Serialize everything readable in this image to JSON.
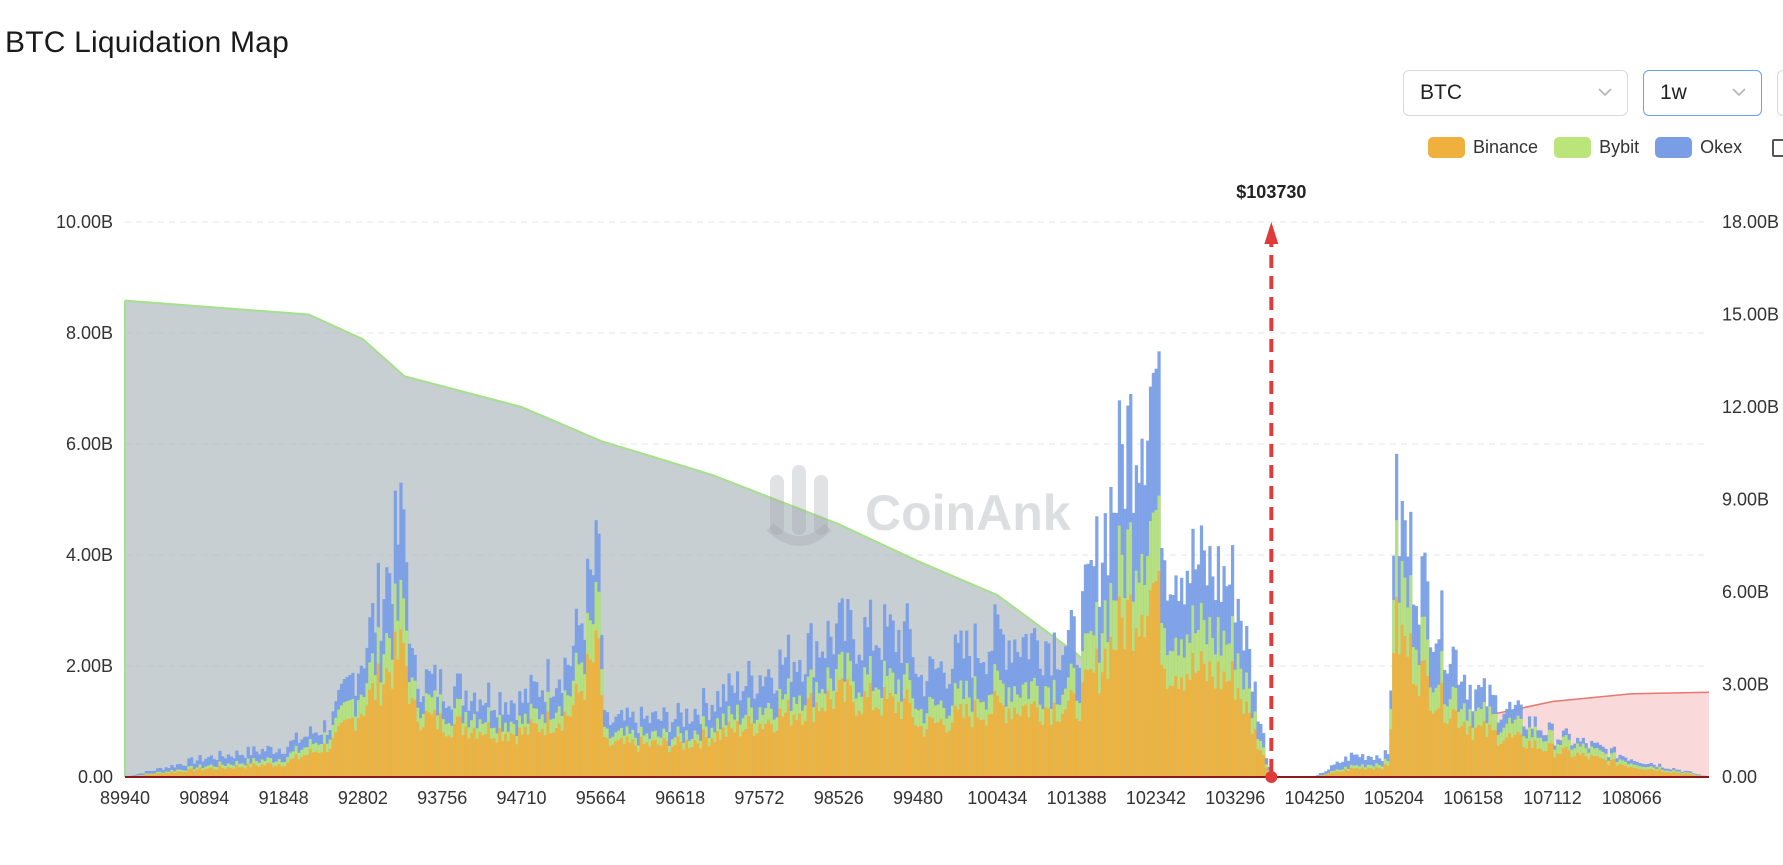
{
  "page": {
    "title": "BTC Liquidation Map"
  },
  "controls": {
    "symbol": {
      "value": "BTC",
      "icon": "chevron-down-icon"
    },
    "range": {
      "value": "1w",
      "icon": "chevron-down-icon"
    }
  },
  "colors": {
    "binance": "#efb03e",
    "bybit": "#b9e57a",
    "okex": "#7a9ee6",
    "cumulative_long": "#a7b1b8",
    "cumulative_short": "#f7c9c9",
    "current_price_line": "#e03b3b",
    "watermark": "#9aa0a6"
  },
  "watermark": {
    "text": "CoinAnk"
  },
  "chart_data": {
    "type": "bar",
    "title": "BTC Liquidation Map",
    "legend": {
      "position": "top-right",
      "entries": [
        "Binance",
        "Bybit",
        "Okex"
      ]
    },
    "x_ticks": [
      89940,
      90894,
      91848,
      92802,
      93756,
      94710,
      95664,
      96618,
      97572,
      98526,
      99480,
      100434,
      101388,
      102342,
      103296,
      104250,
      105204,
      106158,
      107112,
      108066
    ],
    "x_range": [
      89940,
      108995
    ],
    "y_left": {
      "ticks": [
        "0.00",
        "2.00B",
        "4.00B",
        "6.00B",
        "8.00B",
        "10.00B"
      ],
      "range": [
        0,
        10
      ]
    },
    "y_right": {
      "ticks": [
        "0.00",
        "3.00B",
        "6.00B",
        "9.00B",
        "12.00B",
        "15.00B",
        "18.00B"
      ],
      "range": [
        0,
        18
      ]
    },
    "grid": true,
    "current_price": {
      "value": 103730,
      "label": "$103730"
    },
    "series": [
      {
        "name": "Binance",
        "values": [
          [
            89940,
            0.0
          ],
          [
            90894,
            0.15
          ],
          [
            91848,
            0.25
          ],
          [
            92420,
            0.6
          ],
          [
            92802,
            1.3
          ],
          [
            93300,
            2.4
          ],
          [
            93400,
            1.2
          ],
          [
            93756,
            1.0
          ],
          [
            94710,
            0.8
          ],
          [
            95300,
            1.2
          ],
          [
            95650,
            2.4
          ],
          [
            95700,
            0.6
          ],
          [
            96618,
            0.6
          ],
          [
            97572,
            1.0
          ],
          [
            98526,
            1.5
          ],
          [
            99400,
            1.3
          ],
          [
            99480,
            0.9
          ],
          [
            100434,
            1.3
          ],
          [
            101388,
            1.3
          ],
          [
            102000,
            3.0
          ],
          [
            102342,
            3.6
          ],
          [
            102450,
            2.1
          ],
          [
            103296,
            1.8
          ],
          [
            103650,
            0.3
          ],
          [
            103730,
            0.0
          ],
          [
            104250,
            0.0
          ],
          [
            104700,
            0.15
          ],
          [
            105150,
            0.2
          ],
          [
            105204,
            2.8
          ],
          [
            105700,
            1.5
          ],
          [
            106158,
            0.9
          ],
          [
            107112,
            0.5
          ],
          [
            108066,
            0.2
          ],
          [
            108995,
            0.0
          ]
        ]
      },
      {
        "name": "Bybit",
        "values": [
          [
            89940,
            0.0
          ],
          [
            90894,
            0.2
          ],
          [
            91848,
            0.35
          ],
          [
            92420,
            0.8
          ],
          [
            92802,
            1.7
          ],
          [
            93300,
            3.2
          ],
          [
            93400,
            1.5
          ],
          [
            93756,
            1.3
          ],
          [
            94710,
            1.0
          ],
          [
            95300,
            1.6
          ],
          [
            95650,
            3.2
          ],
          [
            95700,
            0.75
          ],
          [
            96618,
            0.75
          ],
          [
            97572,
            1.3
          ],
          [
            98526,
            1.9
          ],
          [
            99400,
            1.7
          ],
          [
            99480,
            1.2
          ],
          [
            100434,
            1.7
          ],
          [
            101388,
            1.7
          ],
          [
            102000,
            4.2
          ],
          [
            102342,
            4.9
          ],
          [
            102450,
            2.9
          ],
          [
            103296,
            2.5
          ],
          [
            103650,
            0.4
          ],
          [
            103730,
            0.0
          ],
          [
            104250,
            0.0
          ],
          [
            104700,
            0.2
          ],
          [
            105150,
            0.28
          ],
          [
            105204,
            4.0
          ],
          [
            105700,
            2.0
          ],
          [
            106158,
            1.2
          ],
          [
            107112,
            0.7
          ],
          [
            108066,
            0.27
          ],
          [
            108995,
            0.0
          ]
        ]
      },
      {
        "name": "Okex",
        "values": [
          [
            89940,
            0.0
          ],
          [
            90894,
            0.35
          ],
          [
            91848,
            0.55
          ],
          [
            92420,
            1.0
          ],
          [
            92802,
            2.3
          ],
          [
            93300,
            4.8
          ],
          [
            93400,
            1.9
          ],
          [
            93756,
            1.7
          ],
          [
            94710,
            1.4
          ],
          [
            95300,
            2.2
          ],
          [
            95650,
            4.2
          ],
          [
            95700,
            1.0
          ],
          [
            96618,
            1.1
          ],
          [
            97572,
            1.9
          ],
          [
            98526,
            2.7
          ],
          [
            99400,
            2.6
          ],
          [
            99480,
            1.8
          ],
          [
            100434,
            2.6
          ],
          [
            101388,
            2.5
          ],
          [
            102000,
            6.3
          ],
          [
            102342,
            7.5
          ],
          [
            102450,
            4.2
          ],
          [
            103296,
            3.6
          ],
          [
            103650,
            0.6
          ],
          [
            103730,
            0.0
          ],
          [
            104250,
            0.0
          ],
          [
            104700,
            0.4
          ],
          [
            105150,
            0.4
          ],
          [
            105204,
            5.0
          ],
          [
            105700,
            3.0
          ],
          [
            106158,
            1.6
          ],
          [
            107112,
            0.8
          ],
          [
            108066,
            0.35
          ],
          [
            108995,
            0.0
          ]
        ]
      }
    ],
    "cumulative_long": {
      "axis": "right",
      "values": [
        [
          89940,
          15.45
        ],
        [
          92150,
          15.0
        ],
        [
          92802,
          14.2
        ],
        [
          93300,
          13.0
        ],
        [
          94710,
          12.0
        ],
        [
          95664,
          10.9
        ],
        [
          97000,
          9.8
        ],
        [
          98526,
          8.2
        ],
        [
          99480,
          7.0
        ],
        [
          100434,
          5.9
        ],
        [
          101388,
          4.0
        ],
        [
          102342,
          1.6
        ],
        [
          103296,
          0.3
        ],
        [
          103730,
          0.0
        ]
      ]
    },
    "cumulative_short": {
      "axis": "right",
      "values": [
        [
          103730,
          0.0
        ],
        [
          105204,
          0.0
        ],
        [
          106158,
          1.9
        ],
        [
          107112,
          2.45
        ],
        [
          108066,
          2.7
        ],
        [
          108995,
          2.75
        ]
      ]
    }
  }
}
